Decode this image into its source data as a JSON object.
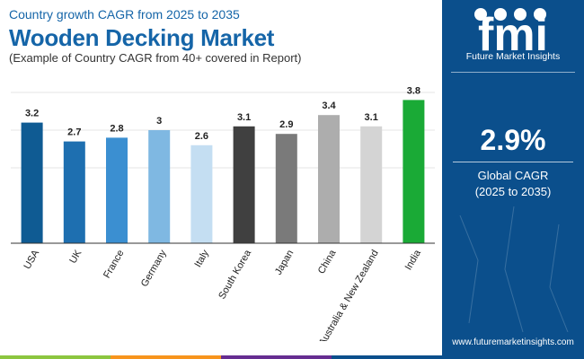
{
  "header": {
    "top_line": "Country growth CAGR from 2025 to 2035",
    "title": "Wooden Decking Market",
    "caption": "(Example of Country CAGR from 40+ covered in Report)"
  },
  "chart_data": {
    "type": "bar",
    "categories": [
      "USA",
      "UK",
      "France",
      "Germany",
      "Italy",
      "South Korea",
      "Japan",
      "China",
      "Australia & New Zealand",
      "India"
    ],
    "values": [
      3.2,
      2.7,
      2.8,
      3,
      2.6,
      3.1,
      2.9,
      3.4,
      3.1,
      3.8
    ],
    "value_labels": [
      "3.2",
      "2.7",
      "2.8",
      "3",
      "2.6",
      "3.1",
      "2.9",
      "3.4",
      "3.1",
      "3.8"
    ],
    "bar_colors": [
      "#0f5b93",
      "#1e6fb0",
      "#3b8fd1",
      "#7fb8e2",
      "#c4def2",
      "#404040",
      "#7a7a7a",
      "#adadad",
      "#d4d4d4",
      "#1aaa36"
    ],
    "ylim": [
      0,
      4
    ],
    "xlabel": "",
    "ylabel": "",
    "grid": true,
    "legend": "none"
  },
  "sidebar": {
    "brand_letters": "fmi",
    "brand_name": "Future Market Insights",
    "cagr_value": "2.9%",
    "cagr_label": "Global CAGR",
    "cagr_period": "(2025 to 2035)",
    "website": "www.futuremarketinsights.com"
  },
  "colors": {
    "brand_blue": "#0b4f8c",
    "title_blue": "#1565a8",
    "strip": [
      "#8cc63f",
      "#f7941d",
      "#662d91",
      "#0b4f8c"
    ]
  }
}
